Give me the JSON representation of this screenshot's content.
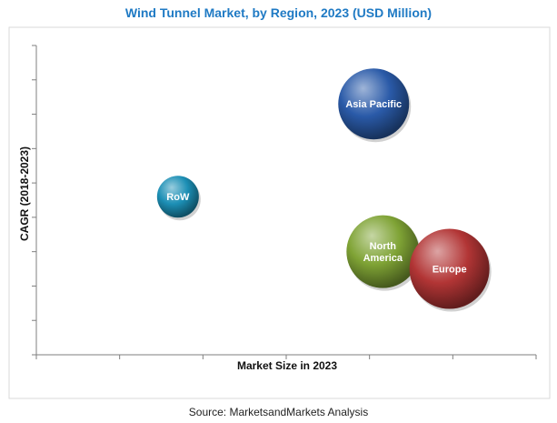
{
  "chart_data": {
    "type": "bubble",
    "title": "Wind Tunnel Market, by Region, 2023 (USD Million)",
    "xlabel": "Market Size in 2023",
    "ylabel": "CAGR (2018-2023)",
    "grid": false,
    "x_ticks_labeled": false,
    "y_ticks_labeled": false,
    "series": [
      {
        "name": "Asia Pacific",
        "x": 405,
        "y": 7.3,
        "size": 78,
        "color": "#2a5aa8"
      },
      {
        "name": "RoW",
        "x": 170,
        "y": 4.6,
        "size": 46,
        "color": "#1c8fb5"
      },
      {
        "name": "North America",
        "x": 416,
        "y": 3.0,
        "size": 80,
        "color": "#7fa335"
      },
      {
        "name": "Europe",
        "x": 496,
        "y": 2.5,
        "size": 88,
        "color": "#b23535"
      }
    ]
  },
  "source": "Source: MarketsandMarkets Analysis"
}
